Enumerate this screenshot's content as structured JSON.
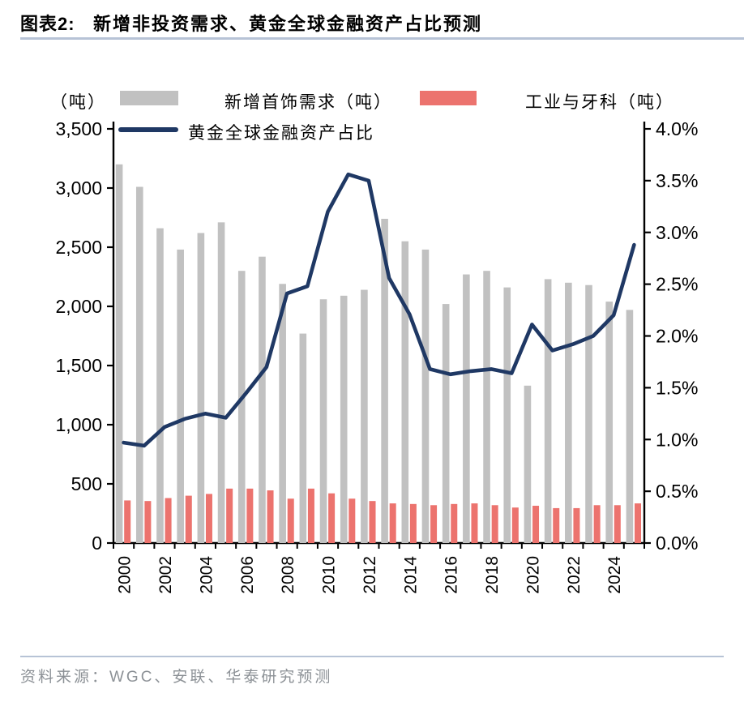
{
  "header": {
    "label": "图表2:",
    "title": "新增非投资需求、黄金全球金融资产占比预测"
  },
  "legend": {
    "left_axis_unit": "（吨）",
    "items": [
      {
        "type": "bar",
        "label": "新增首饰需求（吨）",
        "color": "#c1c1c1"
      },
      {
        "type": "bar",
        "label": "工业与牙科（吨）",
        "color": "#ec736e"
      },
      {
        "type": "line",
        "label": "黄金全球金融资产占比",
        "color": "#1f3864"
      }
    ]
  },
  "footer": {
    "source": "资料来源：WGC、安联、华泰研究预测"
  },
  "chart_data": {
    "type": "combo-bar-line",
    "categories": [
      "2000",
      "2001",
      "2002",
      "2003",
      "2004",
      "2005",
      "2006",
      "2007",
      "2008",
      "2009",
      "2010",
      "2011",
      "2012",
      "2013",
      "2014",
      "2015",
      "2016",
      "2017",
      "2018",
      "2019",
      "2020",
      "2021",
      "2022",
      "2023",
      "2024",
      "2025"
    ],
    "series": [
      {
        "name": "新增首饰需求（吨）",
        "type": "bar",
        "axis": "left",
        "color": "#c1c1c1",
        "values": [
          3200,
          3010,
          2660,
          2480,
          2620,
          2710,
          2300,
          2420,
          2190,
          1770,
          2060,
          2090,
          2140,
          2740,
          2550,
          2480,
          2020,
          2270,
          2300,
          2160,
          1330,
          2230,
          2200,
          2180,
          2040,
          1970
        ]
      },
      {
        "name": "工业与牙科（吨）",
        "type": "bar",
        "axis": "left",
        "color": "#ec736e",
        "values": [
          360,
          355,
          380,
          400,
          415,
          460,
          460,
          445,
          375,
          460,
          420,
          375,
          355,
          335,
          330,
          320,
          330,
          335,
          320,
          300,
          315,
          295,
          295,
          320,
          320,
          335
        ]
      },
      {
        "name": "黄金全球金融资产占比",
        "type": "line",
        "axis": "right",
        "color": "#1f3864",
        "values": [
          0.97,
          0.94,
          1.12,
          1.2,
          1.25,
          1.21,
          1.45,
          1.7,
          2.41,
          2.48,
          3.2,
          3.56,
          3.5,
          2.56,
          2.21,
          1.68,
          1.63,
          1.66,
          1.68,
          1.64,
          2.11,
          1.86,
          1.92,
          2.0,
          2.2,
          2.88
        ]
      }
    ],
    "left_axis": {
      "unit": "（吨）",
      "min": 0,
      "max": 3500,
      "step": 500,
      "tick_labels": [
        "0",
        "500",
        "1,000",
        "1,500",
        "2,000",
        "2,500",
        "3,000",
        "3,500"
      ]
    },
    "right_axis": {
      "min": 0,
      "max": 4,
      "step": 0.5,
      "tick_labels": [
        "0.0%",
        "0.5%",
        "1.0%",
        "1.5%",
        "2.0%",
        "2.5%",
        "3.0%",
        "3.5%",
        "4.0%"
      ]
    },
    "x_tick_labels": [
      "2000",
      "2002",
      "2004",
      "2006",
      "2008",
      "2010",
      "2012",
      "2014",
      "2016",
      "2018",
      "2020",
      "2022",
      "2024"
    ],
    "grid": false,
    "legend_position": "top"
  }
}
